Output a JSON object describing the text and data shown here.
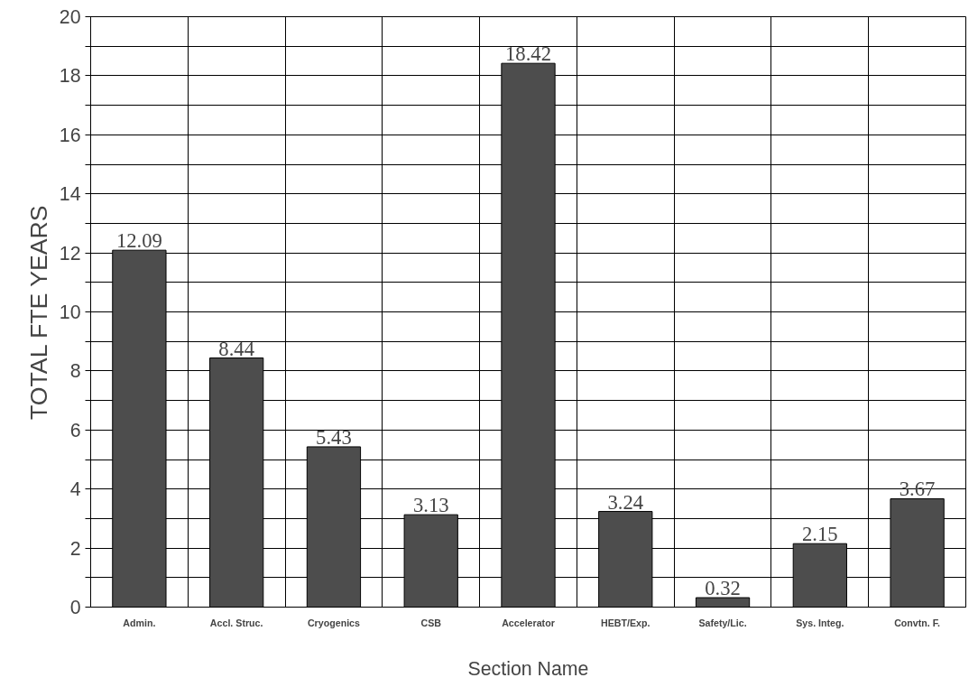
{
  "chart_data": {
    "type": "bar",
    "xlabel": "Section Name",
    "ylabel": "TOTAL FTE YEARS",
    "categories": [
      "Admin.",
      "Accl. Struc.",
      "Cryogenics",
      "CSB",
      "Accelerator",
      "HEBT/Exp.",
      "Safety/Lic.",
      "Sys. Integ.",
      "Convtn. F."
    ],
    "values": [
      12.09,
      8.44,
      5.43,
      3.13,
      18.42,
      3.24,
      0.32,
      2.15,
      3.67
    ],
    "color": "#4d4d4d",
    "ylim": [
      0,
      20
    ],
    "yticks": [
      0,
      {
        "value": 1,
        "label": null
      },
      2,
      {
        "value": 3,
        "label": null
      },
      4,
      {
        "value": 5,
        "label": null
      },
      6,
      {
        "value": 7,
        "label": null
      },
      8,
      {
        "value": 9,
        "label": null
      },
      10,
      {
        "value": 11,
        "label": null
      },
      12,
      {
        "value": 13,
        "label": null
      },
      14,
      {
        "value": 15,
        "label": null
      },
      16,
      {
        "value": 17,
        "label": null
      },
      18,
      {
        "value": 19,
        "label": null
      },
      20
    ],
    "grid": true,
    "data_labels": true
  }
}
